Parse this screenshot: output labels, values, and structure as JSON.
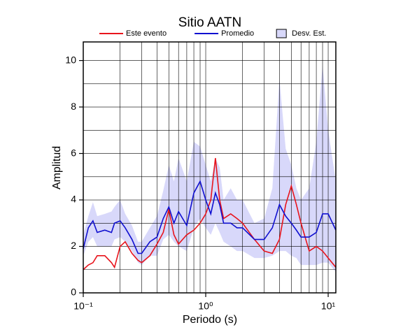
{
  "chart_data": {
    "type": "line",
    "title": "Sitio AATN",
    "xlabel": "Periodo (s)",
    "ylabel": "Amplitud",
    "xscale": "log",
    "grid": true,
    "legend": "top",
    "x": [
      0.1,
      0.11,
      0.12,
      0.13,
      0.15,
      0.17,
      0.18,
      0.2,
      0.22,
      0.25,
      0.28,
      0.3,
      0.35,
      0.4,
      0.45,
      0.5,
      0.55,
      0.6,
      0.7,
      0.8,
      0.9,
      1.0,
      1.1,
      1.2,
      1.3,
      1.4,
      1.6,
      1.8,
      2.0,
      2.5,
      3.0,
      3.5,
      4.0,
      4.5,
      5.0,
      5.5,
      6.0,
      7.0,
      8.0,
      9.0,
      10,
      11.55
    ],
    "series": [
      {
        "name": "Este evento",
        "color": "#e8141c",
        "values": [
          1.0,
          1.2,
          1.3,
          1.6,
          1.6,
          1.3,
          1.1,
          2.0,
          2.2,
          1.7,
          1.4,
          1.3,
          1.6,
          2.1,
          2.6,
          3.6,
          2.5,
          2.1,
          2.5,
          2.7,
          3.0,
          3.4,
          4.0,
          5.8,
          4.0,
          3.2,
          3.4,
          3.2,
          3.0,
          2.3,
          1.8,
          1.7,
          2.3,
          3.8,
          4.6,
          3.8,
          3.0,
          1.8,
          2.0,
          1.8,
          1.5,
          1.1
        ]
      },
      {
        "name": "Promedio",
        "color": "#1010d0",
        "values": [
          1.9,
          2.8,
          3.1,
          2.6,
          2.7,
          2.6,
          3.0,
          3.1,
          2.8,
          2.3,
          1.7,
          1.7,
          2.2,
          2.4,
          3.2,
          3.7,
          3.0,
          3.5,
          2.9,
          4.3,
          4.8,
          4.0,
          3.4,
          4.3,
          3.8,
          3.0,
          3.0,
          2.8,
          2.8,
          2.3,
          2.3,
          2.8,
          3.8,
          3.3,
          3.0,
          2.7,
          2.4,
          2.4,
          2.6,
          3.4,
          3.4,
          2.7
        ]
      }
    ],
    "band": {
      "name": "Desv. Est.",
      "color": "#d8d8fa",
      "lower": [
        1.6,
        2.2,
        2.4,
        2.0,
        2.0,
        2.0,
        2.3,
        2.4,
        2.2,
        1.8,
        1.3,
        1.2,
        1.6,
        1.6,
        2.3,
        2.5,
        2.2,
        2.0,
        1.8,
        2.8,
        3.2,
        2.8,
        2.5,
        3.0,
        2.6,
        2.2,
        2.0,
        1.8,
        1.8,
        1.5,
        1.5,
        1.6,
        1.8,
        1.8,
        1.6,
        1.5,
        1.2,
        1.2,
        1.2,
        1.3,
        1.3,
        0.9
      ],
      "upper": [
        2.5,
        3.3,
        3.9,
        3.3,
        3.4,
        3.5,
        3.7,
        4.0,
        3.4,
        2.9,
        2.2,
        2.2,
        2.8,
        3.3,
        4.4,
        5.5,
        4.8,
        5.8,
        4.8,
        6.5,
        6.3,
        5.5,
        4.8,
        5.8,
        5.4,
        4.0,
        4.5,
        4.0,
        4.0,
        3.0,
        3.2,
        4.5,
        9.2,
        6.2,
        5.5,
        4.5,
        4.0,
        4.5,
        6.5,
        9.8,
        7.0,
        4.8
      ]
    },
    "xlim": [
      0.1,
      11.55
    ],
    "ylim": [
      0,
      10.8
    ],
    "xticks": [
      {
        "value": 0.1,
        "label": "10⁻¹"
      },
      {
        "value": 1,
        "label": "10⁰"
      },
      {
        "value": 10,
        "label": "10¹"
      }
    ],
    "xminor": [
      0.2,
      0.3,
      0.4,
      0.5,
      0.6,
      0.7,
      0.8,
      0.9,
      2,
      3,
      4,
      5,
      6,
      7,
      8,
      9
    ],
    "yticks": [
      0,
      2,
      4,
      6,
      8,
      10
    ],
    "yminor": [
      1,
      3,
      5,
      7,
      9
    ]
  }
}
